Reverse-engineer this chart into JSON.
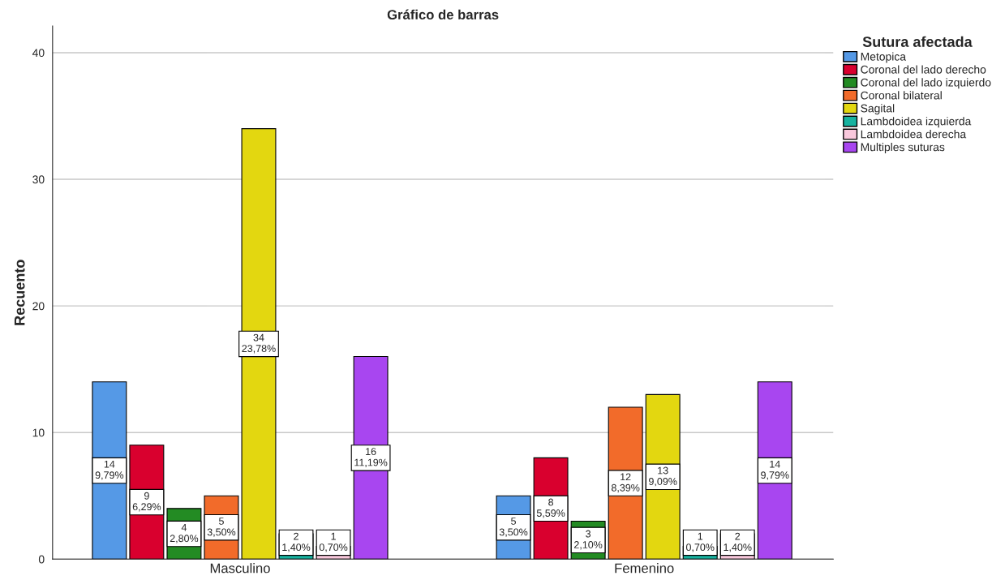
{
  "chart_data": {
    "type": "bar",
    "title": "Gráfico de barras",
    "ylabel": "Recuento",
    "legend_title": "Sutura afectada",
    "categories": [
      "Masculino",
      "Femenino"
    ],
    "series": [
      {
        "name": "Metopica",
        "color": "#5599e6",
        "values": [
          14,
          5
        ],
        "value_labels": [
          "14\n9,79%",
          "5\n3,50%"
        ]
      },
      {
        "name": "Coronal del lado derecho",
        "color": "#d9002e",
        "values": [
          9,
          8
        ],
        "value_labels": [
          "9\n6,29%",
          "8\n5,59%"
        ]
      },
      {
        "name": "Coronal del lado izquierdo",
        "color": "#238b23",
        "values": [
          4,
          3
        ],
        "value_labels": [
          "4\n2,80%",
          "3\n2,10%"
        ]
      },
      {
        "name": "Coronal bilateral",
        "color": "#f26b2a",
        "values": [
          5,
          12
        ],
        "value_labels": [
          "5\n3,50%",
          "12\n8,39%"
        ]
      },
      {
        "name": "Sagital",
        "color": "#e3d710",
        "values": [
          34,
          13
        ],
        "value_labels": [
          "34\n23,78%",
          "13\n9,09%"
        ]
      },
      {
        "name": "Lambdoidea izquierda",
        "color": "#17b3a0",
        "values": [
          2,
          1
        ],
        "value_labels": [
          "2\n1,40%",
          "1\n0,70%"
        ]
      },
      {
        "name": "Lambdoidea derecha",
        "color": "#f9c8dc",
        "values": [
          1,
          2
        ],
        "value_labels": [
          "1\n0,70%",
          "2\n1,40%"
        ]
      },
      {
        "name": "Multiples suturas",
        "color": "#a846f0",
        "values": [
          16,
          14
        ],
        "value_labels": [
          "16\n11,19%",
          "14\n9,79%"
        ]
      }
    ],
    "ylim": [
      0,
      42.1
    ],
    "yticks": [
      0,
      10,
      20,
      30,
      40
    ],
    "grid": "y",
    "legend": "top right"
  }
}
